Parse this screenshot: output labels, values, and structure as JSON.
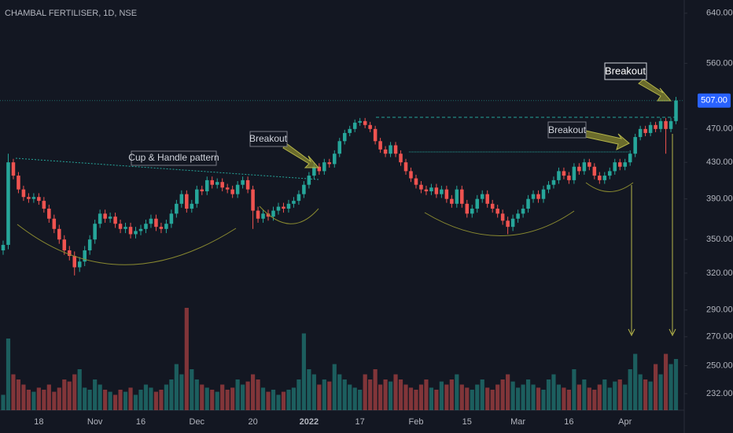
{
  "chart_data": {
    "type": "candlestick",
    "title": "CHAMBAL FERTILISER, 1D, NSE",
    "log_scale": true,
    "ylim": [
      222,
      663
    ],
    "yticks": [
      {
        "value": 640,
        "label": "640.00"
      },
      {
        "value": 560,
        "label": "560.00"
      },
      {
        "value": 470,
        "label": "470.00"
      },
      {
        "value": 430,
        "label": "430.00"
      },
      {
        "value": 390,
        "label": "390.00"
      },
      {
        "value": 350,
        "label": "350.00"
      },
      {
        "value": 320,
        "label": "320.00"
      },
      {
        "value": 290,
        "label": "290.00"
      },
      {
        "value": 270,
        "label": "270.00"
      },
      {
        "value": 250,
        "label": "250.00"
      },
      {
        "value": 232,
        "label": "232.00"
      }
    ],
    "last_price": {
      "value": 507,
      "label": "507.00"
    },
    "up_color": "#26a69a",
    "down_color": "#ef5350",
    "annotations": [
      "Cup & Handle pattern",
      "Breakout",
      "Breakout",
      "Breakout"
    ],
    "categories": [
      null,
      null,
      null,
      null,
      null,
      null,
      null,
      "18",
      null,
      null,
      null,
      null,
      null,
      null,
      null,
      null,
      null,
      null,
      "Nov",
      null,
      null,
      null,
      null,
      null,
      null,
      null,
      null,
      "16",
      null,
      null,
      null,
      null,
      null,
      null,
      null,
      null,
      null,
      null,
      "Dec",
      null,
      null,
      null,
      null,
      null,
      null,
      null,
      null,
      null,
      null,
      "20",
      null,
      null,
      null,
      null,
      null,
      null,
      null,
      null,
      null,
      null,
      "2022",
      null,
      null,
      null,
      null,
      null,
      null,
      null,
      null,
      null,
      "17",
      null,
      null,
      null,
      null,
      null,
      null,
      null,
      null,
      null,
      null,
      "Feb",
      null,
      null,
      null,
      null,
      null,
      null,
      null,
      null,
      null,
      "15",
      null,
      null,
      null,
      null,
      null,
      null,
      null,
      null,
      null,
      "Mar",
      null,
      null,
      null,
      null,
      null,
      null,
      null,
      null,
      null,
      "16",
      null,
      null,
      null,
      null,
      null,
      null,
      null,
      null,
      null,
      null,
      "Apr",
      null,
      null,
      null,
      null,
      null,
      null,
      null,
      null,
      null,
      null
    ],
    "open": [
      340,
      345,
      430,
      415,
      400,
      392,
      390,
      392,
      388,
      380,
      370,
      360,
      350,
      340,
      335,
      325,
      330,
      340,
      350,
      365,
      375,
      370,
      372,
      365,
      360,
      362,
      355,
      358,
      360,
      365,
      370,
      362,
      360,
      365,
      375,
      385,
      395,
      380,
      385,
      400,
      398,
      410,
      405,
      408,
      402,
      400,
      395,
      405,
      410,
      400,
      378,
      370,
      375,
      372,
      378,
      382,
      380,
      385,
      388,
      395,
      405,
      415,
      425,
      420,
      430,
      428,
      440,
      455,
      465,
      470,
      478,
      480,
      475,
      470,
      455,
      445,
      440,
      450,
      440,
      430,
      420,
      412,
      405,
      400,
      398,
      402,
      395,
      400,
      390,
      385,
      400,
      385,
      375,
      380,
      390,
      395,
      385,
      380,
      375,
      368,
      362,
      370,
      375,
      380,
      390,
      395,
      390,
      400,
      405,
      410,
      420,
      415,
      410,
      425,
      420,
      430,
      425,
      415,
      410,
      415,
      420,
      430,
      425,
      430,
      440,
      460,
      470,
      465,
      475,
      470,
      480,
      470,
      480
    ],
    "high": [
      349,
      440,
      434,
      419,
      404,
      396,
      396,
      396,
      392,
      384,
      374,
      364,
      354,
      344,
      339,
      334,
      344,
      354,
      369,
      379,
      379,
      376,
      376,
      369,
      366,
      366,
      362,
      364,
      369,
      374,
      374,
      366,
      369,
      379,
      389,
      399,
      399,
      389,
      404,
      404,
      414,
      414,
      412,
      412,
      406,
      404,
      409,
      414,
      414,
      404,
      382,
      379,
      379,
      382,
      386,
      386,
      389,
      392,
      399,
      409,
      419,
      429,
      429,
      434,
      434,
      444,
      459,
      469,
      474,
      482,
      484,
      484,
      479,
      474,
      459,
      449,
      454,
      454,
      444,
      434,
      424,
      416,
      409,
      404,
      406,
      406,
      404,
      404,
      394,
      404,
      404,
      389,
      384,
      394,
      399,
      399,
      389,
      384,
      379,
      372,
      374,
      379,
      384,
      394,
      399,
      399,
      404,
      409,
      414,
      424,
      424,
      419,
      429,
      429,
      434,
      434,
      429,
      419,
      419,
      424,
      434,
      434,
      434,
      444,
      464,
      474,
      474,
      479,
      479,
      484,
      484,
      484,
      512
    ],
    "low": [
      336,
      341,
      411,
      396,
      388,
      386,
      386,
      384,
      376,
      366,
      356,
      346,
      336,
      331,
      318,
      321,
      326,
      336,
      346,
      361,
      366,
      366,
      361,
      356,
      356,
      351,
      351,
      354,
      356,
      361,
      358,
      356,
      356,
      361,
      371,
      381,
      376,
      376,
      381,
      394,
      394,
      401,
      401,
      398,
      396,
      391,
      391,
      401,
      396,
      360,
      366,
      366,
      368,
      368,
      374,
      376,
      376,
      381,
      384,
      391,
      401,
      411,
      416,
      416,
      424,
      424,
      436,
      451,
      461,
      466,
      474,
      471,
      466,
      451,
      441,
      436,
      436,
      436,
      426,
      416,
      408,
      401,
      396,
      394,
      394,
      391,
      391,
      386,
      381,
      381,
      381,
      371,
      371,
      376,
      386,
      381,
      376,
      371,
      364,
      355,
      358,
      366,
      371,
      376,
      386,
      386,
      386,
      396,
      401,
      406,
      411,
      406,
      406,
      416,
      416,
      421,
      411,
      406,
      406,
      411,
      416,
      421,
      421,
      426,
      436,
      456,
      461,
      461,
      466,
      466,
      440,
      466,
      476
    ],
    "close": [
      345,
      430,
      415,
      400,
      392,
      390,
      392,
      388,
      380,
      370,
      360,
      350,
      340,
      335,
      325,
      330,
      340,
      350,
      365,
      375,
      370,
      372,
      365,
      360,
      362,
      355,
      358,
      360,
      365,
      370,
      362,
      360,
      365,
      375,
      385,
      395,
      380,
      385,
      400,
      398,
      410,
      405,
      408,
      402,
      400,
      395,
      405,
      410,
      400,
      378,
      370,
      375,
      372,
      378,
      382,
      380,
      385,
      388,
      395,
      405,
      415,
      425,
      420,
      430,
      428,
      440,
      455,
      465,
      470,
      478,
      480,
      475,
      470,
      455,
      445,
      440,
      450,
      440,
      430,
      420,
      412,
      405,
      400,
      398,
      402,
      395,
      400,
      390,
      385,
      400,
      385,
      375,
      380,
      390,
      395,
      385,
      380,
      375,
      368,
      362,
      370,
      375,
      380,
      390,
      395,
      390,
      400,
      405,
      410,
      420,
      415,
      410,
      425,
      420,
      430,
      425,
      415,
      410,
      415,
      420,
      430,
      425,
      430,
      440,
      460,
      470,
      465,
      475,
      470,
      480,
      470,
      480,
      507
    ],
    "volume": [
      15,
      70,
      35,
      30,
      25,
      20,
      18,
      22,
      20,
      25,
      18,
      22,
      30,
      28,
      35,
      40,
      22,
      20,
      30,
      25,
      20,
      18,
      15,
      20,
      18,
      22,
      15,
      20,
      25,
      22,
      18,
      20,
      25,
      30,
      45,
      35,
      100,
      40,
      30,
      25,
      22,
      20,
      18,
      25,
      20,
      22,
      30,
      25,
      28,
      35,
      30,
      22,
      18,
      20,
      15,
      18,
      20,
      22,
      30,
      75,
      40,
      35,
      25,
      30,
      28,
      45,
      35,
      30,
      25,
      22,
      20,
      35,
      30,
      40,
      25,
      30,
      28,
      35,
      30,
      25,
      22,
      20,
      25,
      30,
      22,
      20,
      28,
      25,
      30,
      35,
      25,
      22,
      20,
      25,
      30,
      22,
      20,
      25,
      30,
      35,
      28,
      22,
      25,
      30,
      25,
      22,
      20,
      30,
      35,
      25,
      22,
      20,
      40,
      25,
      30,
      22,
      20,
      25,
      30,
      22,
      28,
      30,
      25,
      40,
      55,
      35,
      30,
      28,
      45,
      35,
      55,
      45,
      50
    ]
  }
}
